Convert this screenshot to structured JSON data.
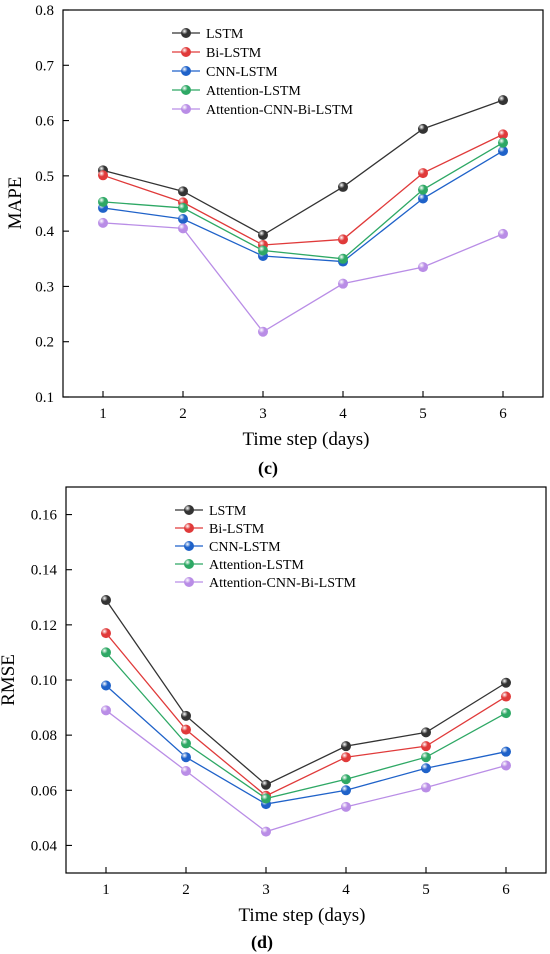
{
  "colors": {
    "LSTM": "#333333",
    "Bi-LSTM": "#e03a3a",
    "CNN-LSTM": "#1f62c9",
    "Attention-LSTM": "#2ea865",
    "Attention-CNN-Bi-LSTM": "#b98de6"
  },
  "chart_data": [
    {
      "type": "line",
      "panel_label": "(c)",
      "xlabel": "Time step (days)",
      "ylabel": "MAPE",
      "x": [
        1,
        2,
        3,
        4,
        5,
        6
      ],
      "x_ticks": [
        "1",
        "2",
        "3",
        "4",
        "5",
        "6"
      ],
      "y_ticks": [
        "0.1",
        "0.2",
        "0.3",
        "0.4",
        "0.5",
        "0.6",
        "0.7",
        "0.8"
      ],
      "xlim": [
        0.5,
        6.5
      ],
      "ylim": [
        0.1,
        0.8
      ],
      "legend_position": "top-left",
      "series": [
        {
          "name": "LSTM",
          "values": [
            0.51,
            0.472,
            0.393,
            0.48,
            0.585,
            0.637
          ]
        },
        {
          "name": "Bi-LSTM",
          "values": [
            0.501,
            0.452,
            0.375,
            0.385,
            0.505,
            0.575
          ]
        },
        {
          "name": "CNN-LSTM",
          "values": [
            0.442,
            0.422,
            0.355,
            0.345,
            0.459,
            0.545
          ]
        },
        {
          "name": "Attention-LSTM",
          "values": [
            0.453,
            0.442,
            0.365,
            0.35,
            0.475,
            0.56
          ]
        },
        {
          "name": "Attention-CNN-Bi-LSTM",
          "values": [
            0.415,
            0.405,
            0.218,
            0.305,
            0.335,
            0.395
          ]
        }
      ]
    },
    {
      "type": "line",
      "panel_label": "(d)",
      "xlabel": "Time step (days)",
      "ylabel": "RMSE",
      "x": [
        1,
        2,
        3,
        4,
        5,
        6
      ],
      "x_ticks": [
        "1",
        "2",
        "3",
        "4",
        "5",
        "6"
      ],
      "y_ticks": [
        "0.04",
        "0.06",
        "0.08",
        "0.10",
        "0.12",
        "0.14",
        "0.16"
      ],
      "xlim": [
        0.5,
        6.5
      ],
      "ylim": [
        0.03,
        0.17
      ],
      "legend_position": "top-left",
      "series": [
        {
          "name": "LSTM",
          "values": [
            0.129,
            0.087,
            0.062,
            0.076,
            0.081,
            0.099
          ]
        },
        {
          "name": "Bi-LSTM",
          "values": [
            0.117,
            0.082,
            0.058,
            0.072,
            0.076,
            0.094
          ]
        },
        {
          "name": "CNN-LSTM",
          "values": [
            0.098,
            0.072,
            0.055,
            0.06,
            0.068,
            0.074
          ]
        },
        {
          "name": "Attention-LSTM",
          "values": [
            0.11,
            0.077,
            0.057,
            0.064,
            0.072,
            0.088
          ]
        },
        {
          "name": "Attention-CNN-Bi-LSTM",
          "values": [
            0.089,
            0.067,
            0.045,
            0.054,
            0.061,
            0.069
          ]
        }
      ]
    }
  ]
}
